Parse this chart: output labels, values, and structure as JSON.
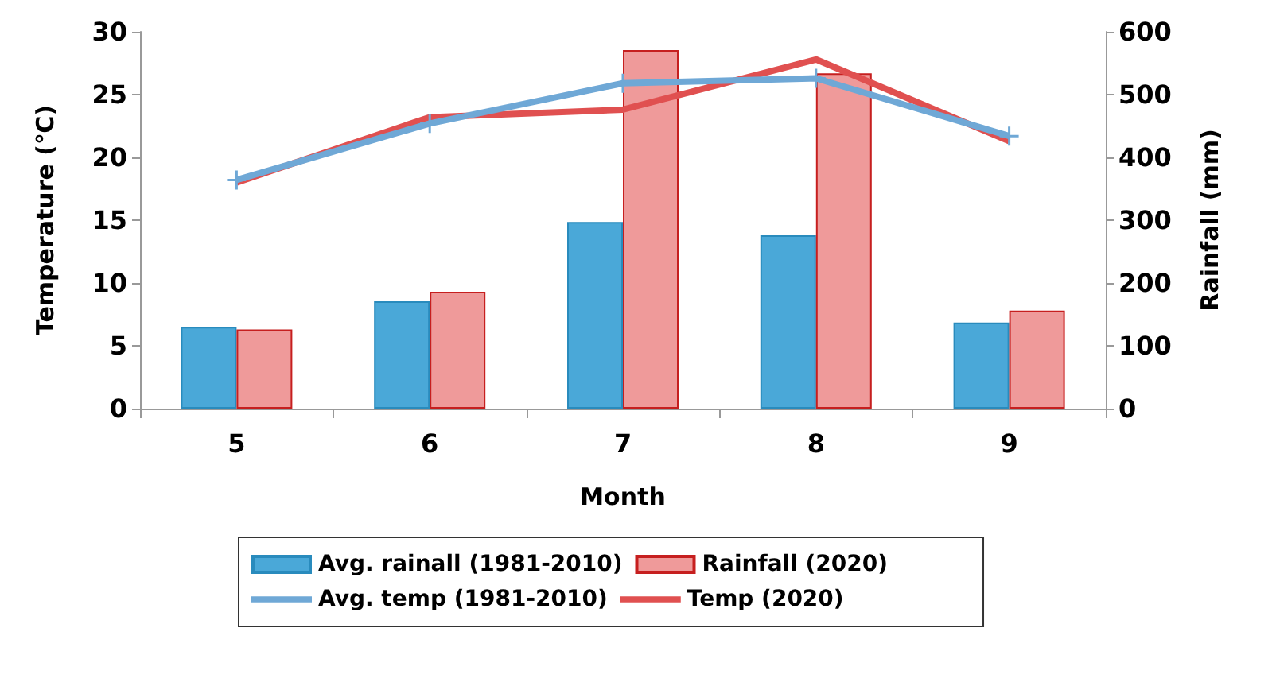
{
  "chart_data": {
    "type": "bar",
    "xlabel": "Month",
    "ylabel": "Temperature (℃)",
    "y2label": "Rainfall (mm)",
    "categories": [
      "5",
      "6",
      "7",
      "8",
      "9"
    ],
    "series": [
      {
        "name": "Avg. rainall (1981-2010)",
        "axis": "y2",
        "color": "#4aa8d8",
        "values": [
          130,
          171,
          297,
          276,
          137
        ]
      },
      {
        "name": "Rainfall (2020)",
        "axis": "y2",
        "color": "#ef9a9a",
        "values": [
          126,
          186,
          571,
          534,
          156
        ]
      },
      {
        "name": "Avg. temp (1981-2010)",
        "type": "line",
        "color": "#6fa8d6",
        "marker": "cross",
        "values": [
          18.2,
          22.7,
          25.9,
          26.3,
          21.7
        ]
      },
      {
        "name": "Temp (2020)",
        "type": "line",
        "color": "#e05050",
        "values": [
          18.0,
          23.2,
          23.8,
          27.8,
          21.3
        ]
      }
    ],
    "ylim": [
      0,
      30
    ],
    "yticks": [
      0,
      5,
      10,
      15,
      20,
      25,
      30
    ],
    "y2lim": [
      0,
      600
    ],
    "y2ticks": [
      0,
      100,
      200,
      300,
      400,
      500,
      600
    ],
    "grid": false,
    "legend": "bottom"
  }
}
